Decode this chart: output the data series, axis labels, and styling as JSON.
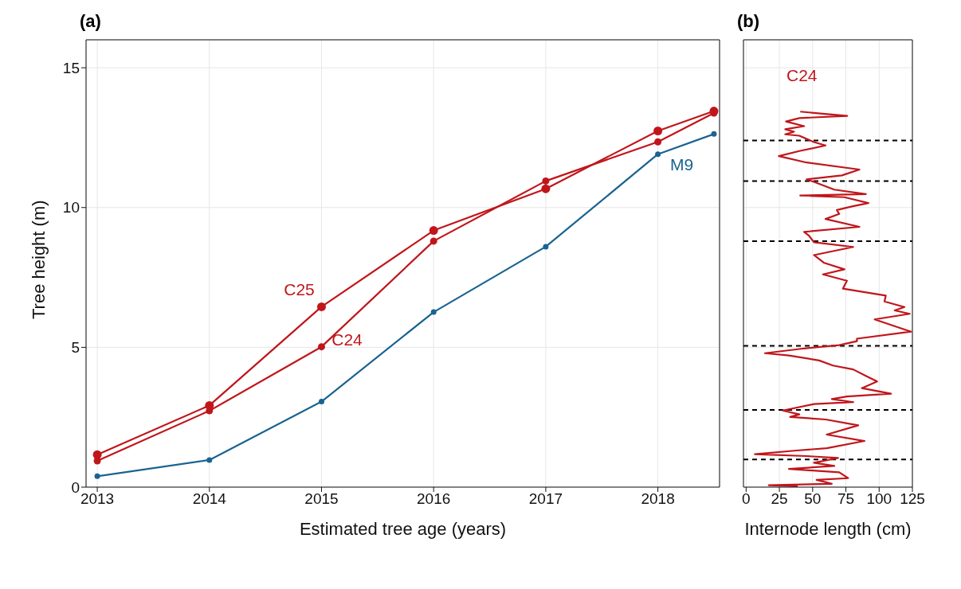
{
  "chart_data": [
    {
      "type": "line",
      "title": "(a)",
      "xlabel": "Estimated tree age (years)",
      "ylabel": "Tree height (m)",
      "x": [
        2013,
        2014,
        2015,
        2016,
        2017,
        2018,
        2018.5
      ],
      "xlim": [
        2012.9,
        2018.55
      ],
      "xticks": [
        2013,
        2014,
        2015,
        2016,
        2017,
        2018
      ],
      "ylim": [
        0,
        16
      ],
      "yticks": [
        0,
        5,
        10,
        15
      ],
      "grid": true,
      "marker": "circle",
      "line_style": "solid",
      "series": [
        {
          "name": "C25",
          "color": "#c0161b",
          "values": [
            1.16,
            2.92,
            6.45,
            9.18,
            10.67,
            12.74,
            13.45
          ]
        },
        {
          "name": "C24",
          "color": "#c0161b",
          "values": [
            0.94,
            2.73,
            5.02,
            8.8,
            10.95,
            12.35,
            13.38
          ]
        },
        {
          "name": "M9",
          "color": "#1a6391",
          "values": [
            0.39,
            0.97,
            3.06,
            6.26,
            8.6,
            11.91,
            12.63
          ]
        }
      ]
    },
    {
      "type": "line",
      "title": "(b)",
      "xlabel": "Internode length (cm)",
      "xlim": [
        -2,
        125
      ],
      "xticks": [
        0,
        25,
        50,
        75,
        100,
        125
      ],
      "ylim": [
        0,
        16
      ],
      "yticks": [
        0,
        5,
        10,
        15
      ],
      "tick_labels": "x",
      "grid": true,
      "line_style": "solid",
      "series": [
        {
          "name": "C24",
          "color": "#c0161b",
          "x": [
            40.7,
            76,
            40,
            30,
            43.6,
            29.4,
            36,
            29.4,
            40,
            51,
            59.7,
            40,
            24.6,
            45.5,
            85.2,
            72,
            45.5,
            51,
            66.3,
            90,
            40.7,
            73.9,
            91.9,
            79.5,
            68.2,
            70,
            59.7,
            85.2,
            43.6,
            47.3,
            51,
            80.5,
            51,
            58.7,
            73.9,
            57.8,
            75.8,
            72.8,
            105,
            104,
            119,
            111.7,
            123,
            96.6,
            124,
            83.3,
            83.3,
            70,
            43.6,
            14.2,
            32.2,
            54.9,
            65.3,
            80.5,
            90,
            98.5,
            87,
            108.9,
            75.8,
            64.4,
            80.5,
            51,
            27.5,
            40,
            33.1,
            59.7,
            84.3,
            60.6,
            89,
            60.6,
            37.9,
            6.6,
            45.5,
            69.1,
            51,
            66.3,
            32.2,
            70,
            76.7,
            53,
            64.4,
            17,
            38.8
          ],
          "values": [
            13.43,
            13.28,
            13.2,
            13.08,
            12.91,
            12.8,
            12.71,
            12.62,
            12.57,
            12.34,
            12.22,
            12.02,
            11.84,
            11.61,
            11.36,
            11.15,
            11.01,
            10.92,
            10.64,
            10.48,
            10.43,
            10.37,
            10.16,
            10.04,
            9.91,
            9.77,
            9.59,
            9.31,
            9.13,
            8.99,
            8.76,
            8.59,
            8.3,
            8.02,
            7.79,
            7.61,
            7.38,
            7.1,
            6.85,
            6.64,
            6.44,
            6.32,
            6.2,
            6.0,
            5.56,
            5.31,
            5.22,
            5.08,
            4.96,
            4.79,
            4.71,
            4.53,
            4.35,
            4.21,
            3.98,
            3.78,
            3.54,
            3.34,
            3.24,
            3.15,
            3.04,
            2.97,
            2.74,
            2.6,
            2.51,
            2.42,
            2.21,
            1.88,
            1.65,
            1.39,
            1.31,
            1.18,
            1.11,
            1.04,
            0.87,
            0.76,
            0.65,
            0.53,
            0.32,
            0.26,
            0.12,
            0.07,
            0.03
          ]
        }
      ],
      "ref_lines": [
        {
          "axis": "y",
          "value": 12.4,
          "color": "#000000",
          "line_style": "dashed"
        },
        {
          "axis": "y",
          "value": 10.95,
          "color": "#000000",
          "line_style": "dashed"
        },
        {
          "axis": "y",
          "value": 8.8,
          "color": "#000000",
          "line_style": "dashed"
        },
        {
          "axis": "y",
          "value": 5.05,
          "color": "#000000",
          "line_style": "dashed"
        },
        {
          "axis": "y",
          "value": 2.76,
          "color": "#000000",
          "line_style": "dashed"
        },
        {
          "axis": "y",
          "value": 0.99,
          "color": "#000000",
          "line_style": "dashed"
        }
      ]
    }
  ]
}
